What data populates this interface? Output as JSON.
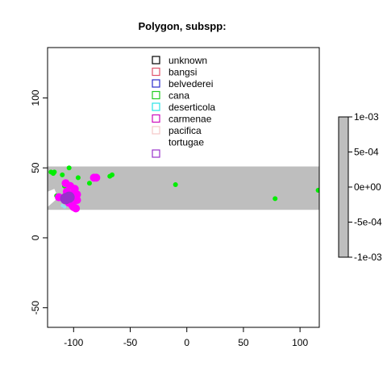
{
  "chart_data": {
    "type": "scatter",
    "title": "Polygon, subspp:",
    "xlabel": "",
    "ylabel": "",
    "xlim": [
      -123,
      117
    ],
    "ylim": [
      -64,
      136
    ],
    "x_ticks": [
      -100,
      -50,
      0,
      50,
      100
    ],
    "y_ticks": [
      -50,
      0,
      50,
      100
    ],
    "x_tick_labels": [
      "-100",
      "-50",
      "0",
      "50",
      "100"
    ],
    "y_tick_labels": [
      "-50",
      "0",
      "50",
      "100"
    ],
    "band": {
      "y_from": 20,
      "y_to": 51,
      "color": "#bebebe"
    },
    "inset": [
      [
        -123,
        33
      ],
      [
        -117,
        35
      ],
      [
        -115,
        31
      ],
      [
        -116,
        27
      ],
      [
        -123,
        22
      ]
    ],
    "legend": {
      "position": "top-center",
      "entries": [
        {
          "label": "unknown",
          "color": "#000000"
        },
        {
          "label": "bangsi",
          "color": "#df536b"
        },
        {
          "label": "belvederei",
          "color": "#2b2bcc"
        },
        {
          "label": "cana",
          "color": "#22cc22"
        },
        {
          "label": "deserticola",
          "color": "#28e2e5"
        },
        {
          "label": "carmenae",
          "color": "#cd0bbc"
        },
        {
          "label": "pacifica",
          "color": "#f5c7c7"
        },
        {
          "label": "tortugae",
          "color": ""
        },
        {
          "label": "",
          "color": "#9932cc"
        }
      ]
    },
    "series": [
      {
        "color": "#00ee00",
        "size": 3,
        "points": [
          [
            -120,
            47
          ],
          [
            -118,
            46
          ],
          [
            -117,
            47
          ],
          [
            -110,
            45
          ],
          [
            -104,
            50
          ],
          [
            -96,
            43
          ],
          [
            -86,
            39
          ],
          [
            -68,
            44
          ],
          [
            -66,
            45
          ],
          [
            -10,
            38
          ],
          [
            78,
            28
          ],
          [
            116,
            34
          ],
          [
            -115,
            30
          ],
          [
            -108,
            37
          ]
        ]
      },
      {
        "color": "#ff00ff",
        "size": 5,
        "points": [
          [
            -113,
            29
          ],
          [
            -106,
            33
          ],
          [
            -103,
            31
          ],
          [
            -98,
            29
          ],
          [
            -97,
            27
          ],
          [
            -104,
            25
          ],
          [
            -100,
            22
          ],
          [
            -98,
            21
          ],
          [
            -101,
            23
          ],
          [
            -97,
            31
          ],
          [
            -107,
            39
          ],
          [
            -103,
            37
          ],
          [
            -80,
            43
          ],
          [
            -82,
            43
          ],
          [
            -99,
            35
          ]
        ]
      },
      {
        "color": "#9932cc",
        "size": 7,
        "points": [
          [
            -107,
            28
          ],
          [
            -104,
            29
          ]
        ]
      },
      {
        "color": "#8ee5ee",
        "size": 2,
        "points": [
          [
            -110,
            23
          ],
          [
            -108,
            22
          ]
        ]
      }
    ],
    "colorbar": {
      "ticks": [
        0.001,
        0.0005,
        0,
        -0.0005,
        -0.001
      ],
      "tick_labels": [
        "1e-03",
        "5e-04",
        "0e+00",
        "-5e-04",
        "-1e-03"
      ],
      "range": [
        -0.001,
        0.001
      ],
      "fill": "#bebebe"
    }
  }
}
